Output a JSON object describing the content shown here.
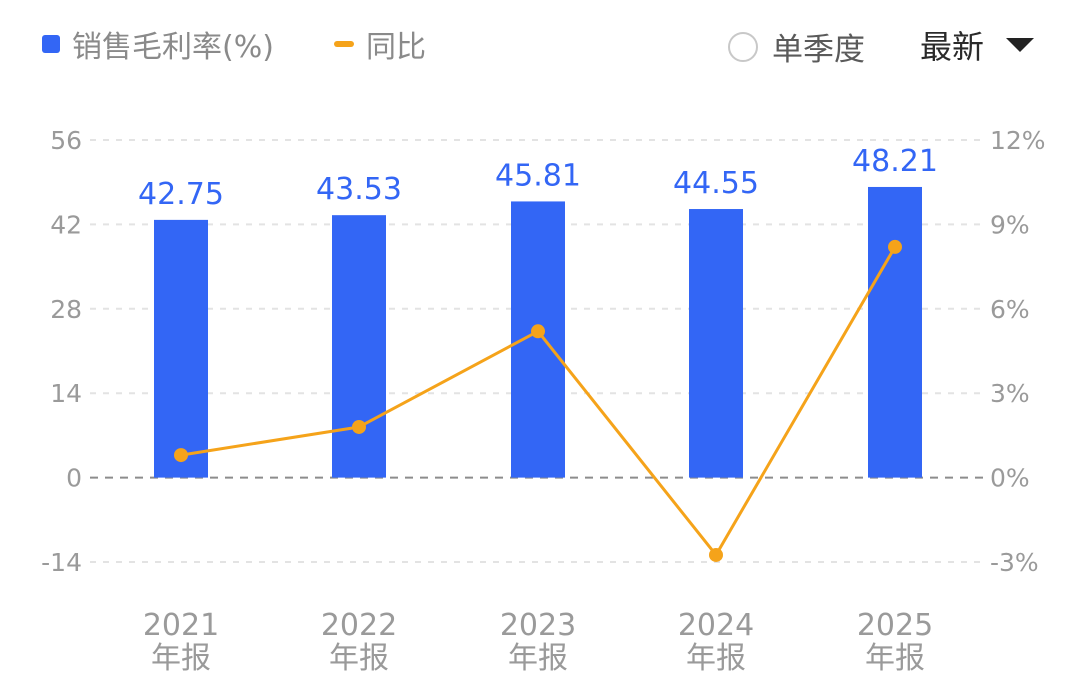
{
  "legend": {
    "bar_label": "销售毛利率(%)",
    "line_label": "同比"
  },
  "controls": {
    "toggle_label": "单季度",
    "period_label": "最新"
  },
  "colors": {
    "bar": "#3366f5",
    "line": "#f5a31a",
    "grid": "#e3e3e3",
    "zero_line": "#8c8c8c"
  },
  "chart_data": {
    "type": "bar",
    "categories": [
      [
        "2021",
        "年报"
      ],
      [
        "2022",
        "年报"
      ],
      [
        "2023",
        "年报"
      ],
      [
        "2024",
        "年报"
      ],
      [
        "2025",
        "年报"
      ]
    ],
    "series": [
      {
        "name": "销售毛利率(%)",
        "type": "bar",
        "axis": "left",
        "values": [
          42.75,
          43.53,
          45.81,
          44.55,
          48.21
        ]
      },
      {
        "name": "同比",
        "type": "line",
        "axis": "right",
        "values": [
          0.8,
          1.8,
          5.2,
          -2.75,
          8.2
        ]
      }
    ],
    "y_left": {
      "ticks": [
        56,
        42,
        28,
        14,
        0,
        -14
      ],
      "ylim": [
        -14,
        56
      ]
    },
    "y_right": {
      "ticks": [
        "12%",
        "9%",
        "6%",
        "3%",
        "0%",
        "-3%"
      ],
      "ylim": [
        -3,
        12
      ]
    },
    "data_labels": [
      "42.75",
      "43.53",
      "45.81",
      "44.55",
      "48.21"
    ],
    "grid": true
  }
}
